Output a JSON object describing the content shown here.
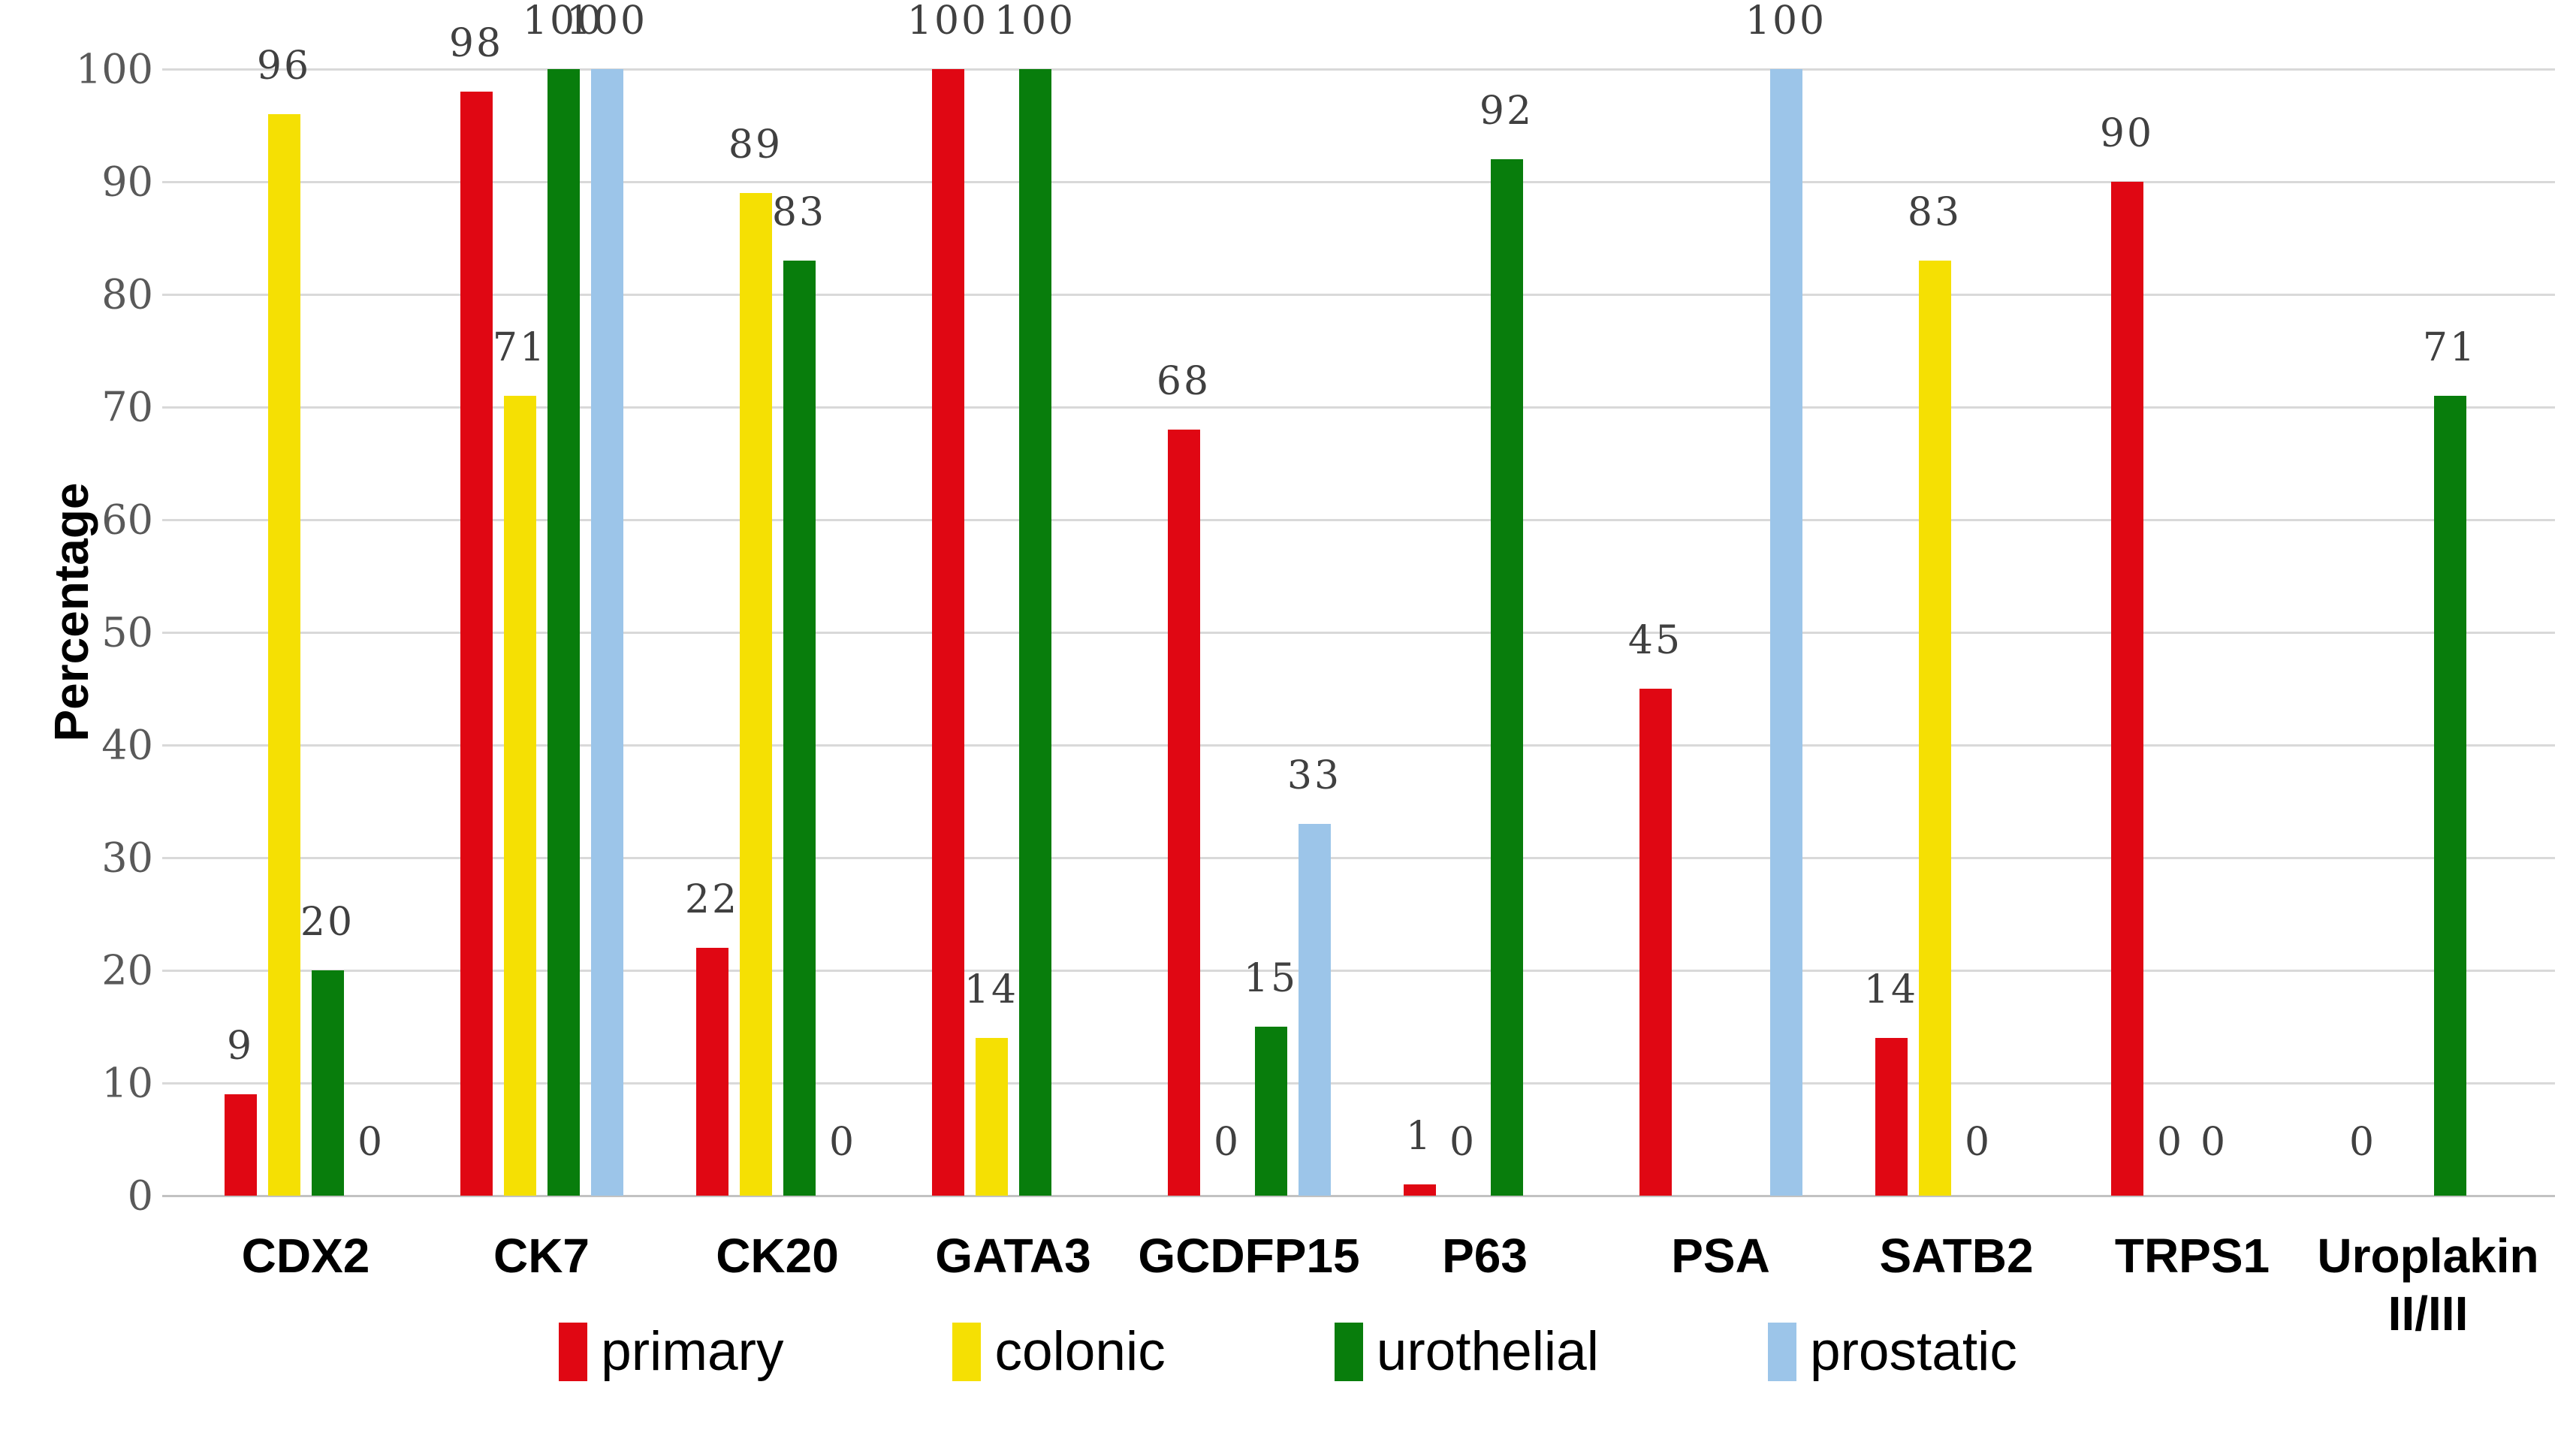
{
  "chart_data": {
    "type": "bar",
    "title": "",
    "xlabel": "",
    "ylabel": "Percentage",
    "ylim": [
      0,
      100
    ],
    "yticks": [
      0,
      10,
      20,
      30,
      40,
      50,
      60,
      70,
      80,
      90,
      100
    ],
    "grid": true,
    "legend_position": "bottom",
    "value_labels_shown": true,
    "categories": [
      "CDX2",
      "CK7",
      "CK20",
      "GATA3",
      "GCDFP15",
      "P63",
      "PSA",
      "SATB2",
      "TRPS1",
      "Uroplakin II/III"
    ],
    "series": [
      {
        "name": "primary",
        "color": "#E00713",
        "values": [
          9,
          98,
          22,
          100,
          68,
          1,
          45,
          14,
          90,
          0
        ]
      },
      {
        "name": "colonic",
        "color": "#F5E003",
        "values": [
          96,
          71,
          89,
          14,
          0,
          0,
          null,
          83,
          0,
          null
        ]
      },
      {
        "name": "urothelial",
        "color": "#087D0C",
        "values": [
          20,
          100,
          83,
          100,
          15,
          92,
          null,
          0,
          0,
          71
        ]
      },
      {
        "name": "prostatic",
        "color": "#9CC5E9",
        "values": [
          0,
          100,
          0,
          null,
          33,
          null,
          100,
          null,
          null,
          null
        ]
      }
    ],
    "colors": {
      "gridline": "#D9D9D9",
      "axis_line": "#C2C2C2",
      "tick_label": "#595959",
      "value_label": "#404040",
      "category_label": "#000000",
      "background": "#FFFFFF"
    }
  }
}
